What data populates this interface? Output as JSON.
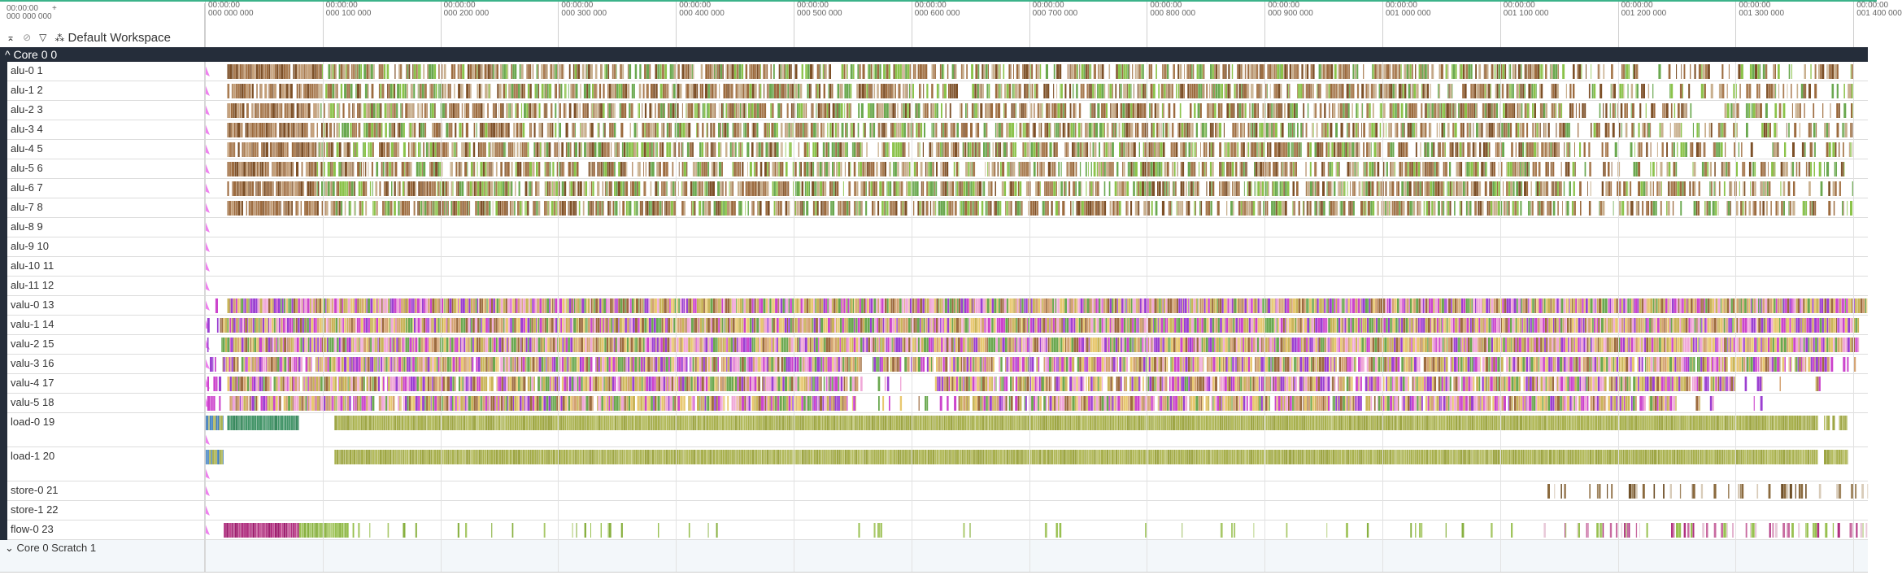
{
  "timeline": {
    "origin": {
      "line1": "00:00:00",
      "line2": "000 000 000",
      "plus": "+"
    },
    "ticks": [
      {
        "line1": "00:00:00",
        "line2": "000 000 000",
        "ns": 0
      },
      {
        "line1": "00:00:00",
        "line2": "000 100 000",
        "ns": 100000
      },
      {
        "line1": "00:00:00",
        "line2": "000 200 000",
        "ns": 200000
      },
      {
        "line1": "00:00:00",
        "line2": "000 300 000",
        "ns": 300000
      },
      {
        "line1": "00:00:00",
        "line2": "000 400 000",
        "ns": 400000
      },
      {
        "line1": "00:00:00",
        "line2": "000 500 000",
        "ns": 500000
      },
      {
        "line1": "00:00:00",
        "line2": "000 600 000",
        "ns": 600000
      },
      {
        "line1": "00:00:00",
        "line2": "000 700 000",
        "ns": 700000
      },
      {
        "line1": "00:00:00",
        "line2": "000 800 000",
        "ns": 800000
      },
      {
        "line1": "00:00:00",
        "line2": "000 900 000",
        "ns": 900000
      },
      {
        "line1": "00:00:00",
        "line2": "001 000 000",
        "ns": 1000000
      },
      {
        "line1": "00:00:00",
        "line2": "001 100 000",
        "ns": 1100000
      },
      {
        "line1": "00:00:00",
        "line2": "001 200 000",
        "ns": 1200000
      },
      {
        "line1": "00:00:00",
        "line2": "001 300 000",
        "ns": 1300000
      },
      {
        "line1": "00:00:00",
        "line2": "001 400 000",
        "ns": 1400000
      }
    ]
  },
  "toolbar": {
    "icons": [
      "collapse-all-icon",
      "unpin-icon",
      "filter-icon",
      "workspace-icon"
    ],
    "workspace": "Default Workspace"
  },
  "group": {
    "title": "Core 0 0",
    "expanded": true
  },
  "scratch_group": {
    "title": "Core 0 Scratch 1",
    "expanded": false
  },
  "palettes": {
    "alu_brown": [
      "#9c6b3f",
      "#a97c52",
      "#7d5028",
      "#c4a07a"
    ],
    "alu_mix": [
      "#9c6b3f",
      "#7d5028",
      "#6aa84f",
      "#8bc34a",
      "#a97c52",
      "#c9b08f"
    ],
    "valu": [
      "#c9b458",
      "#f0a8d8",
      "#9b3fd1",
      "#6aa84f",
      "#9c6b3f",
      "#d4a373",
      "#cc44cc",
      "#e8c870"
    ],
    "valu_start": [
      "#9b3fd1",
      "#cc44cc"
    ],
    "load_blue": [
      "#3d7ab8",
      "#4a88c4",
      "#a8b04e"
    ],
    "load_green": [
      "#3a8a5f",
      "#45966a"
    ],
    "load_olive": [
      "#a8b04e",
      "#b4bb5e",
      "#9ea645"
    ],
    "store": [
      "#8b6a3e",
      "#6f5028",
      "#d8cbb8",
      "#a08660"
    ],
    "flow_magenta": [
      "#b03080",
      "#c04890",
      "#a02070"
    ],
    "flow_green": [
      "#98c050",
      "#a8c868",
      "#88b040"
    ],
    "flow_mix": [
      "#b03080",
      "#c86aa0",
      "#98c050",
      "#e8c8d8"
    ],
    "marker": "#ee82ee"
  },
  "tracks": [
    {
      "name": "alu-0 1",
      "segments": [
        [
          19000,
          95000,
          "alu_brown",
          0.9
        ],
        [
          95000,
          1150000,
          "alu_mix",
          0.7
        ],
        [
          1150000,
          1400000,
          "alu_mix",
          0.4
        ]
      ]
    },
    {
      "name": "alu-1 2",
      "segments": [
        [
          19000,
          95000,
          "alu_brown",
          0.9
        ],
        [
          95000,
          1150000,
          "alu_mix",
          0.7
        ],
        [
          1150000,
          1400000,
          "alu_mix",
          0.4
        ]
      ]
    },
    {
      "name": "alu-2 3",
      "segments": [
        [
          19000,
          95000,
          "alu_brown",
          0.9
        ],
        [
          95000,
          1150000,
          "alu_mix",
          0.7
        ],
        [
          1150000,
          1400000,
          "alu_mix",
          0.4
        ]
      ]
    },
    {
      "name": "alu-3 4",
      "segments": [
        [
          19000,
          95000,
          "alu_brown",
          0.9
        ],
        [
          95000,
          1150000,
          "alu_mix",
          0.7
        ],
        [
          1150000,
          1400000,
          "alu_mix",
          0.4
        ]
      ]
    },
    {
      "name": "alu-4 5",
      "segments": [
        [
          19000,
          95000,
          "alu_brown",
          0.9
        ],
        [
          95000,
          1150000,
          "alu_mix",
          0.7
        ],
        [
          1150000,
          1400000,
          "alu_mix",
          0.4
        ]
      ]
    },
    {
      "name": "alu-5 6",
      "segments": [
        [
          19000,
          95000,
          "alu_brown",
          0.9
        ],
        [
          95000,
          1150000,
          "alu_mix",
          0.7
        ],
        [
          1150000,
          1400000,
          "alu_mix",
          0.4
        ]
      ]
    },
    {
      "name": "alu-6 7",
      "segments": [
        [
          19000,
          95000,
          "alu_brown",
          0.9
        ],
        [
          95000,
          1150000,
          "alu_mix",
          0.7
        ],
        [
          1150000,
          1400000,
          "alu_mix",
          0.4
        ]
      ]
    },
    {
      "name": "alu-7 8",
      "segments": [
        [
          19000,
          95000,
          "alu_brown",
          0.9
        ],
        [
          95000,
          1150000,
          "alu_mix",
          0.7
        ],
        [
          1150000,
          1400000,
          "alu_mix",
          0.4
        ]
      ]
    },
    {
      "name": "alu-8 9",
      "segments": []
    },
    {
      "name": "alu-9 10",
      "segments": []
    },
    {
      "name": "alu-10 11",
      "segments": []
    },
    {
      "name": "alu-11 12",
      "segments": []
    },
    {
      "name": "valu-0 13",
      "segments": [
        [
          2000,
          12000,
          "valu_start",
          0.3
        ],
        [
          19000,
          1412000,
          "valu",
          1
        ]
      ]
    },
    {
      "name": "valu-1 14",
      "segments": [
        [
          2000,
          12000,
          "valu_start",
          0.3
        ],
        [
          13000,
          1405000,
          "valu",
          1
        ]
      ]
    },
    {
      "name": "valu-2 15",
      "segments": [
        [
          2000,
          12000,
          "valu_start",
          0.3
        ],
        [
          14000,
          1405000,
          "valu",
          1
        ]
      ]
    },
    {
      "name": "valu-3 16",
      "segments": [
        [
          2000,
          12000,
          "valu_start",
          0.3
        ],
        [
          15000,
          558000,
          "valu",
          0.97
        ],
        [
          567000,
          1380000,
          "valu",
          0.95
        ],
        [
          1380000,
          1405000,
          "valu",
          0.3
        ]
      ]
    },
    {
      "name": "valu-4 17",
      "segments": [
        [
          2000,
          18000,
          "valu_start",
          0.3
        ],
        [
          19000,
          555000,
          "valu",
          0.95
        ],
        [
          555000,
          620000,
          "valu",
          0.15
        ],
        [
          620000,
          1300000,
          "valu",
          0.9
        ],
        [
          1300000,
          1380000,
          "valu",
          0.15
        ]
      ]
    },
    {
      "name": "valu-5 18",
      "segments": [
        [
          2000,
          18000,
          "valu_start",
          0.3
        ],
        [
          21000,
          553000,
          "valu",
          0.95
        ],
        [
          553000,
          640000,
          "valu",
          0.12
        ],
        [
          640000,
          1250000,
          "valu",
          0.9
        ],
        [
          1250000,
          1325000,
          "valu",
          0.15
        ]
      ]
    },
    {
      "name": "load-0 19",
      "tall": true,
      "segments": [
        [
          0,
          16000,
          "load_blue",
          1
        ],
        [
          19000,
          80000,
          "load_green",
          1
        ],
        [
          110000,
          1370000,
          "load_olive",
          1
        ],
        [
          1375000,
          1395000,
          "load_olive",
          0.9
        ]
      ]
    },
    {
      "name": "load-1 20",
      "tall": true,
      "segments": [
        [
          0,
          16000,
          "load_blue",
          1
        ],
        [
          110000,
          1370000,
          "load_olive",
          1
        ],
        [
          1375000,
          1395000,
          "load_olive",
          0.9
        ]
      ]
    },
    {
      "name": "store-0 21",
      "segments": [
        [
          1137000,
          1412000,
          "store",
          0.25
        ]
      ]
    },
    {
      "name": "store-1 22",
      "segments": []
    },
    {
      "name": "flow-0 23",
      "segments": [
        [
          16000,
          80000,
          "flow_magenta",
          1
        ],
        [
          80000,
          120000,
          "flow_green",
          1
        ],
        [
          120000,
          1137000,
          "flow_green",
          0.08
        ],
        [
          1137000,
          1412000,
          "flow_mix",
          0.3
        ]
      ]
    }
  ]
}
